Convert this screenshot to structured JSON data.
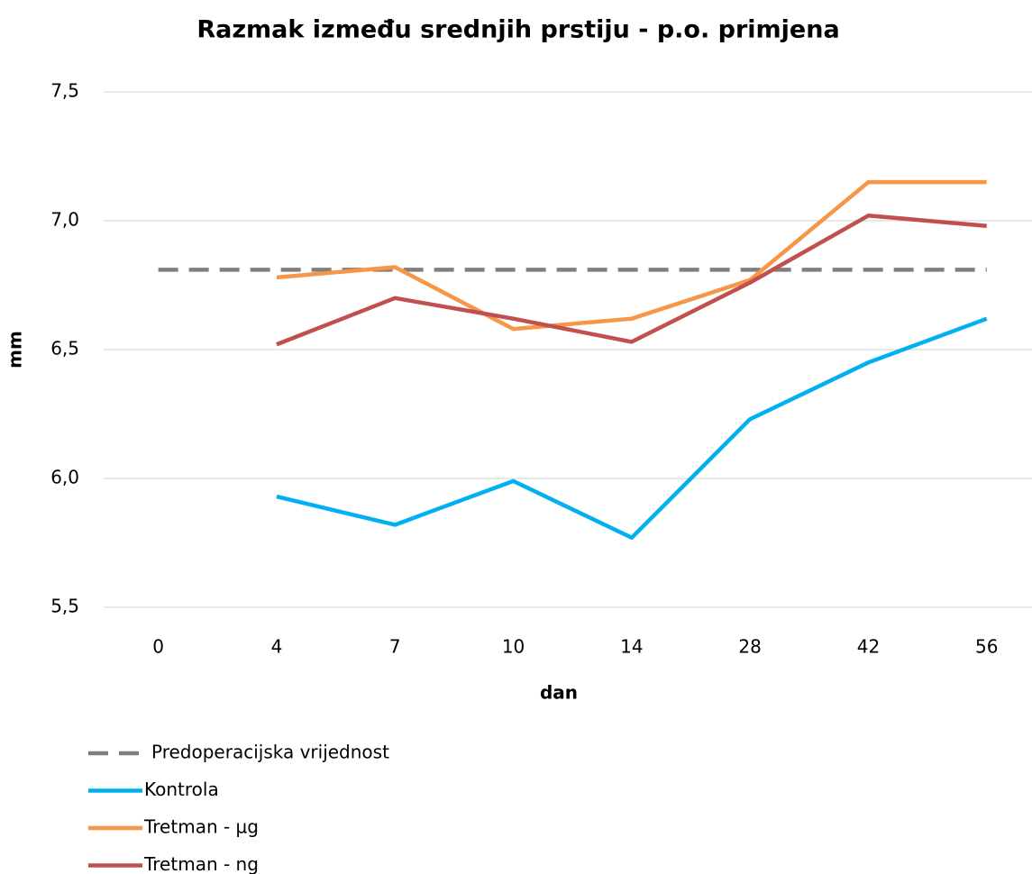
{
  "chart_data": {
    "type": "line",
    "title": "Razmak između srednjih prstiju - p.o. primjena",
    "x_label": "dan",
    "y_label": "mm",
    "categories": [
      "0",
      "4",
      "7",
      "10",
      "14",
      "28",
      "42",
      "56"
    ],
    "series": [
      {
        "name": "Predoperacijska vrijednost",
        "color": "#7f7f7f",
        "dashed": true,
        "values": [
          6.81,
          6.81,
          6.81,
          6.81,
          6.81,
          6.81,
          6.81,
          6.81
        ]
      },
      {
        "name": "Kontrola",
        "color": "#00b0f0",
        "values": [
          null,
          5.93,
          5.82,
          5.99,
          5.77,
          6.23,
          6.45,
          6.62
        ]
      },
      {
        "name": "Tretman - µg",
        "color": "#f79646",
        "values": [
          null,
          6.78,
          6.82,
          6.58,
          6.62,
          6.77,
          7.15,
          7.15
        ]
      },
      {
        "name": "Tretman - ng",
        "color": "#c0504d",
        "values": [
          null,
          6.52,
          6.7,
          6.62,
          6.53,
          6.76,
          7.02,
          6.98
        ]
      }
    ],
    "ylim": [
      5.5,
      7.5
    ],
    "yticks": [
      {
        "value": 5.5,
        "label": "5,5"
      },
      {
        "value": 6,
        "label": "6,0"
      },
      {
        "value": 6.5,
        "label": "6,5"
      },
      {
        "value": 7,
        "label": "7,0"
      },
      {
        "value": 7.5,
        "label": "7,5"
      }
    ],
    "grid": true,
    "legend": "bottom"
  }
}
